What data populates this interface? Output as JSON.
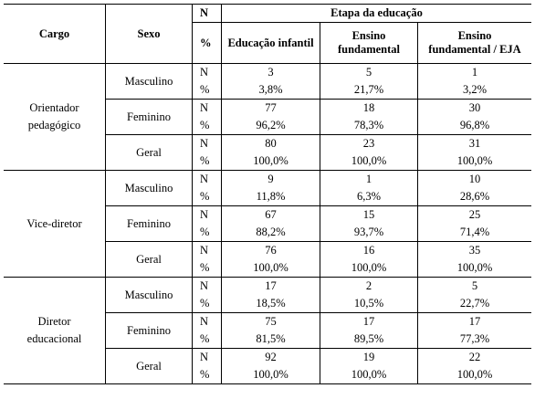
{
  "headers": {
    "cargo": "Cargo",
    "sexo": "Sexo",
    "n_label": "N",
    "pct_label": "%",
    "etapa": "Etapa da educação",
    "col1": "Educação infantil",
    "col2_line1": "Ensino",
    "col2_line2": "fundamental",
    "col3_line1": "Ensino",
    "col3_line2": "fundamental / EJA"
  },
  "groups": [
    {
      "cargo_line1": "Orientador",
      "cargo_line2": "pedagógico",
      "rows": [
        {
          "sexo": "Masculino",
          "n": [
            "3",
            "5",
            "1"
          ],
          "pct": [
            "3,8%",
            "21,7%",
            "3,2%"
          ]
        },
        {
          "sexo": "Feminino",
          "n": [
            "77",
            "18",
            "30"
          ],
          "pct": [
            "96,2%",
            "78,3%",
            "96,8%"
          ]
        },
        {
          "sexo": "Geral",
          "n": [
            "80",
            "23",
            "31"
          ],
          "pct": [
            "100,0%",
            "100,0%",
            "100,0%"
          ]
        }
      ]
    },
    {
      "cargo_line1": "Vice-diretor",
      "cargo_line2": "",
      "rows": [
        {
          "sexo": "Masculino",
          "n": [
            "9",
            "1",
            "10"
          ],
          "pct": [
            "11,8%",
            "6,3%",
            "28,6%"
          ]
        },
        {
          "sexo": "Feminino",
          "n": [
            "67",
            "15",
            "25"
          ],
          "pct": [
            "88,2%",
            "93,7%",
            "71,4%"
          ]
        },
        {
          "sexo": "Geral",
          "n": [
            "76",
            "16",
            "35"
          ],
          "pct": [
            "100,0%",
            "100,0%",
            "100,0%"
          ]
        }
      ]
    },
    {
      "cargo_line1": "Diretor",
      "cargo_line2": "educacional",
      "rows": [
        {
          "sexo": "Masculino",
          "n": [
            "17",
            "2",
            "5"
          ],
          "pct": [
            "18,5%",
            "10,5%",
            "22,7%"
          ]
        },
        {
          "sexo": "Feminino",
          "n": [
            "75",
            "17",
            "17"
          ],
          "pct": [
            "81,5%",
            "89,5%",
            "77,3%"
          ]
        },
        {
          "sexo": "Geral",
          "n": [
            "92",
            "19",
            "22"
          ],
          "pct": [
            "100,0%",
            "100,0%",
            "100,0%"
          ]
        }
      ]
    }
  ]
}
